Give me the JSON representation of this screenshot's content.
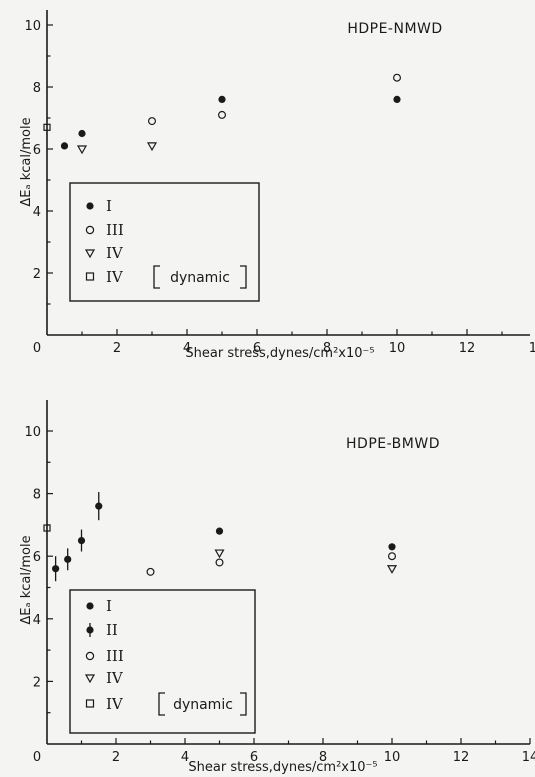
{
  "chart_data": [
    {
      "type": "scatter",
      "title": "HDPE-NMWD",
      "xlabel": "Shear stress,dynes/cm²x10⁻⁵",
      "ylabel": "ΔEₐ kcal/mole",
      "xlim": [
        0,
        16
      ],
      "ylim": [
        0,
        10.5
      ],
      "xticks": [
        "0",
        "2",
        "4",
        "6",
        "8",
        "10",
        "12",
        "14"
      ],
      "yticks": [
        "2",
        "4",
        "6",
        "8",
        "10"
      ],
      "legend_position": "lower-left",
      "series": [
        {
          "name": "I",
          "marker": "filled-circle",
          "x": [
            0.5,
            1,
            5,
            10,
            15
          ],
          "y": [
            6.1,
            6.5,
            7.6,
            7.6,
            6.5
          ]
        },
        {
          "name": "III",
          "marker": "open-circle",
          "x": [
            3,
            5,
            10,
            15
          ],
          "y": [
            6.9,
            7.1,
            8.3,
            7.3
          ]
        },
        {
          "name": "IV",
          "marker": "open-triangle-down",
          "x": [
            1,
            3
          ],
          "y": [
            6.0,
            6.1
          ]
        },
        {
          "name": "IV",
          "legend_extra": "dynamic",
          "marker": "open-square",
          "x": [
            0
          ],
          "y": [
            6.7
          ]
        }
      ]
    },
    {
      "type": "scatter",
      "title": "HDPE-BMWD",
      "xlabel": "Shear stress,dynes/cm²x10⁻⁵",
      "ylabel": "ΔEₐ kcal/mole",
      "xlim": [
        0,
        16
      ],
      "ylim": [
        0,
        11
      ],
      "xticks": [
        "0",
        "2",
        "4",
        "6",
        "8",
        "10",
        "12",
        "14"
      ],
      "yticks": [
        "2",
        "4",
        "6",
        "8",
        "10"
      ],
      "legend_position": "lower-left",
      "series": [
        {
          "name": "I",
          "marker": "filled-circle",
          "x": [
            5,
            10
          ],
          "y": [
            6.8,
            6.3
          ]
        },
        {
          "name": "II",
          "marker": "filled-circle-errorbar",
          "x": [
            0.25,
            0.6,
            1,
            1.5
          ],
          "y": [
            5.6,
            5.9,
            6.5,
            7.6
          ],
          "err": [
            0.4,
            0.35,
            0.35,
            0.45
          ]
        },
        {
          "name": "III",
          "marker": "open-circle",
          "x": [
            3,
            5,
            10,
            15
          ],
          "y": [
            5.5,
            5.8,
            6.0,
            5.3
          ]
        },
        {
          "name": "IV",
          "marker": "open-triangle-down",
          "x": [
            5,
            10
          ],
          "y": [
            6.1,
            5.6
          ]
        },
        {
          "name": "IV",
          "legend_extra": "dynamic",
          "marker": "open-square",
          "x": [
            0
          ],
          "y": [
            6.9
          ]
        }
      ]
    }
  ]
}
